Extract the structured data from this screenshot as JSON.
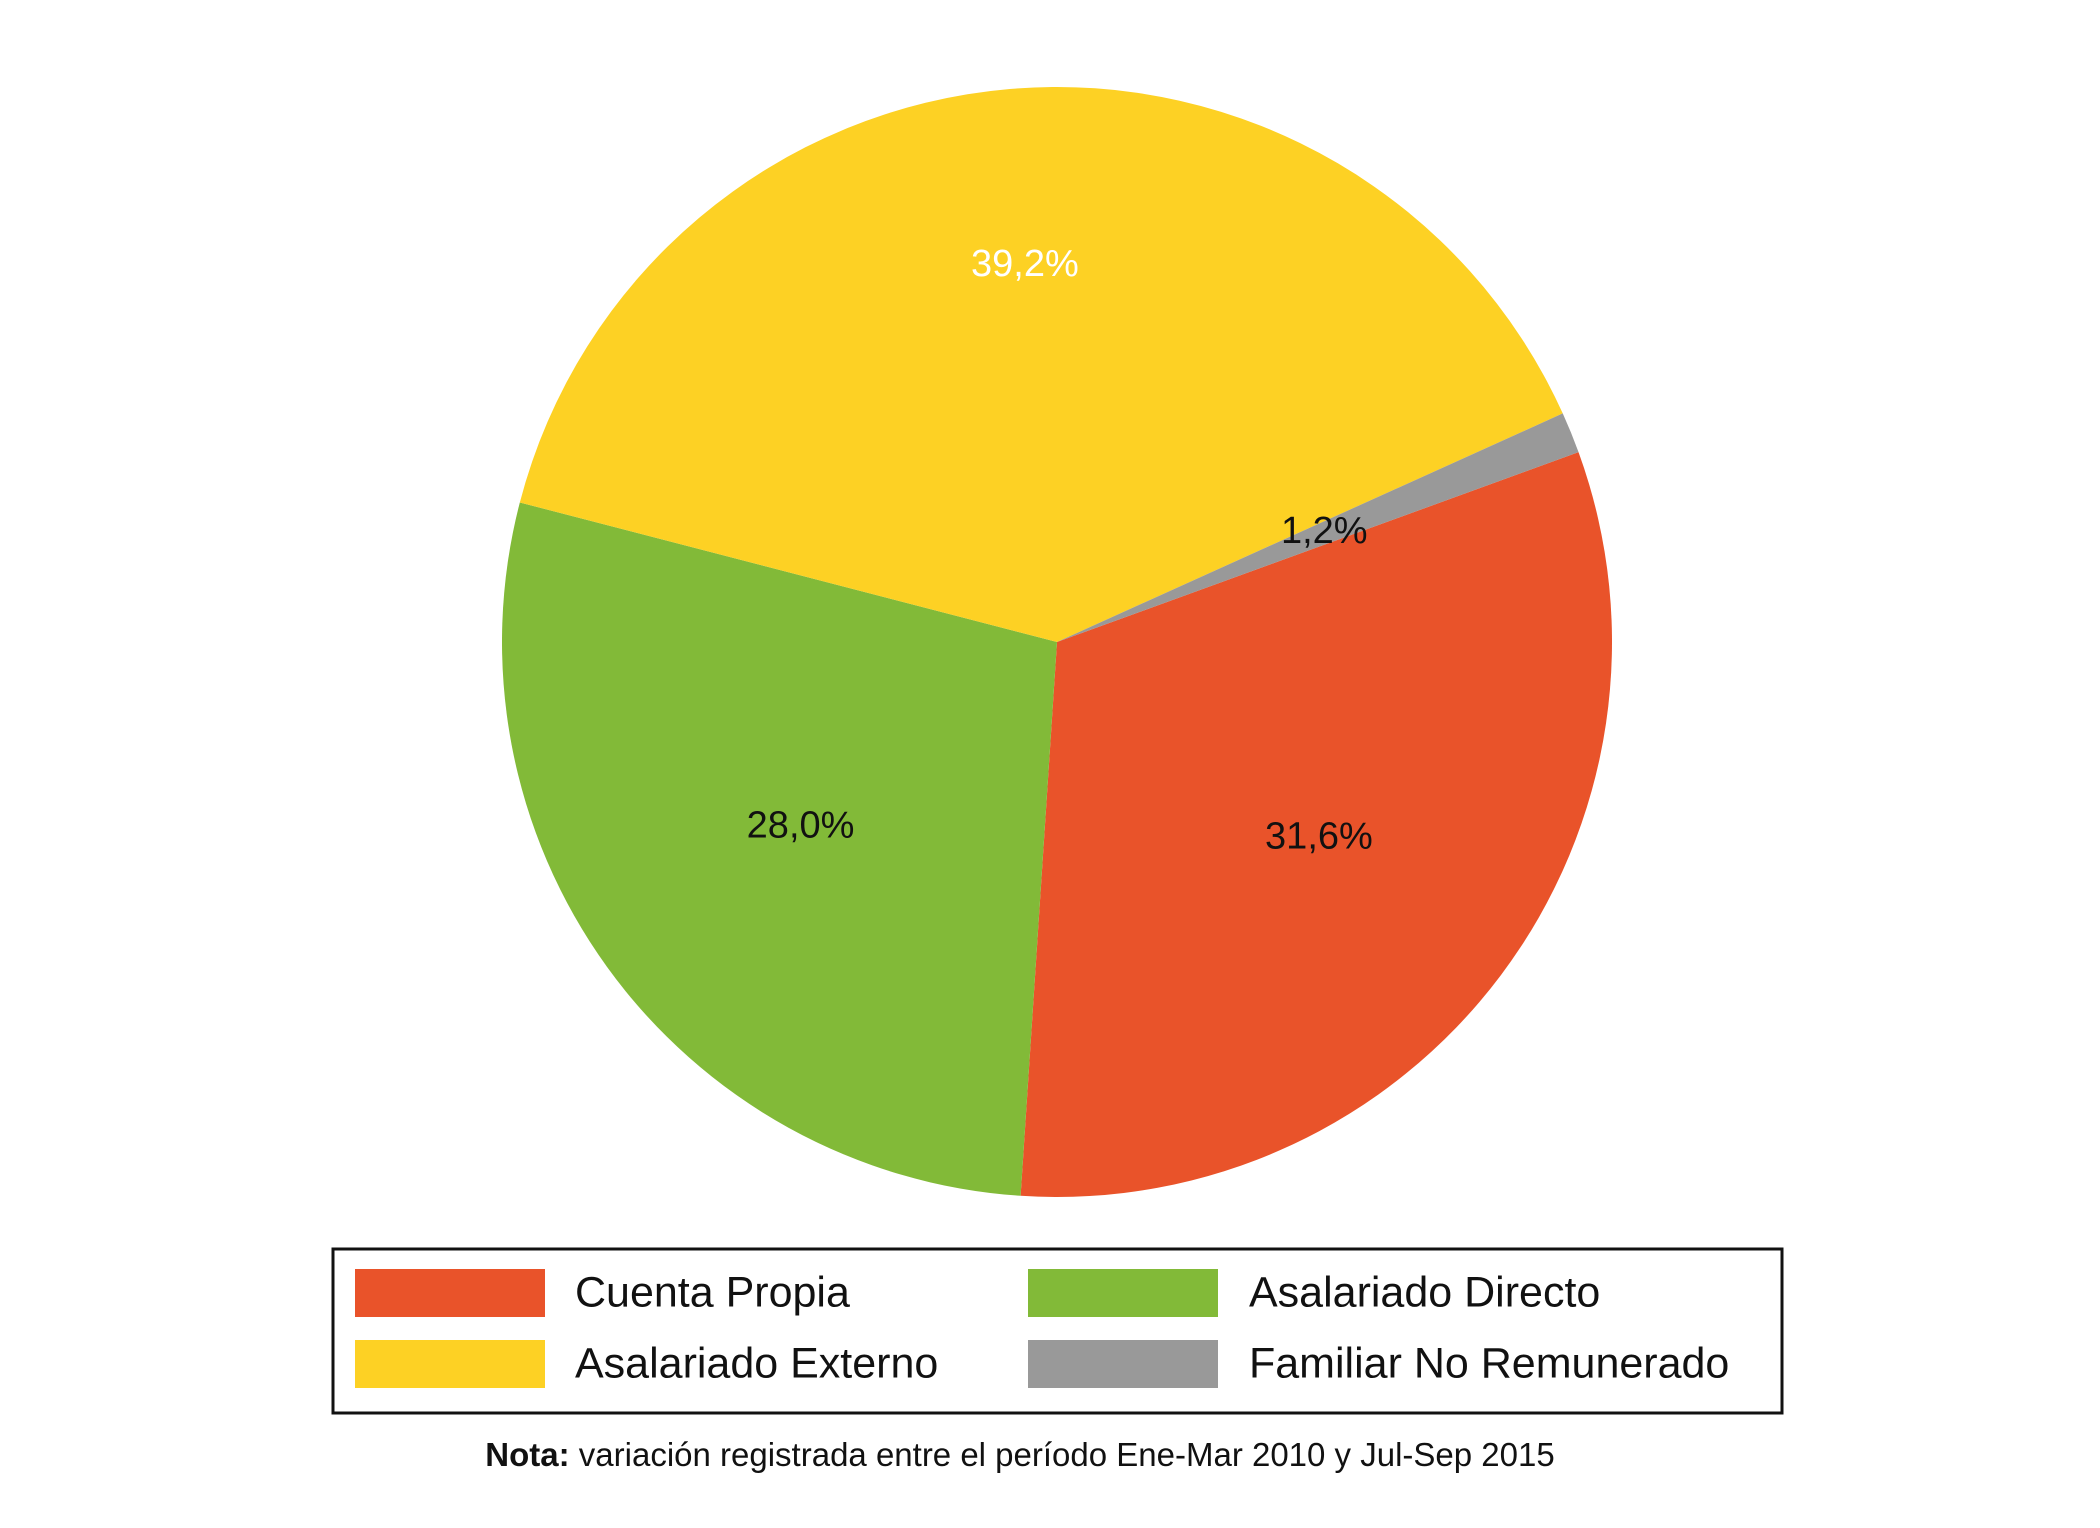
{
  "chart_data": {
    "type": "pie",
    "slices": [
      {
        "name": "Cuenta Propia",
        "value": 31.6,
        "label": "31,6%",
        "color": "#E9532A",
        "label_color": "#111111"
      },
      {
        "name": "Asalariado Directo",
        "value": 28.0,
        "label": "28,0%",
        "color": "#82BA38",
        "label_color": "#111111"
      },
      {
        "name": "Asalariado Externo",
        "value": 39.2,
        "label": "39,2%",
        "color": "#FDD124",
        "label_color": "#ffffff"
      },
      {
        "name": "Familiar No Remunerado",
        "value": 1.2,
        "label": "1,2%",
        "color": "#999999",
        "label_color": "#111111"
      }
    ],
    "legend": {
      "placement": "bottom",
      "columns": 2,
      "entries": [
        {
          "name": "Cuenta Propia",
          "color": "#E9532A"
        },
        {
          "name": "Asalariado Directo",
          "color": "#82BA38"
        },
        {
          "name": "Asalariado Externo",
          "color": "#FDD124"
        },
        {
          "name": "Familiar No Remunerado",
          "color": "#999999"
        }
      ]
    }
  },
  "note": {
    "label": "Nota:",
    "text": " variación registrada entre el período Ene-Mar 2010 y Jul-Sep 2015"
  }
}
